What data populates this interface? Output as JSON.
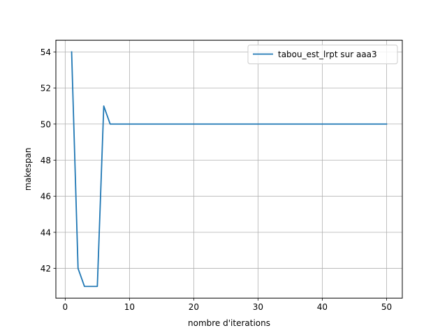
{
  "chart_data": {
    "type": "line",
    "title": "",
    "xlabel": "nombre d'iterations",
    "ylabel": "makespan",
    "xlim": [
      -1.45,
      52.45
    ],
    "ylim": [
      40.35,
      54.65
    ],
    "xticks": [
      0,
      10,
      20,
      30,
      40,
      50
    ],
    "yticks": [
      42,
      44,
      46,
      48,
      50,
      52,
      54
    ],
    "grid": true,
    "legend_position": "top-right",
    "series": [
      {
        "name": "tabou_est_lrpt sur aaa3",
        "color": "#1f77b4",
        "x": [
          1,
          2,
          3,
          4,
          5,
          6,
          7,
          8,
          9,
          10,
          11,
          12,
          13,
          14,
          15,
          16,
          17,
          18,
          19,
          20,
          21,
          22,
          23,
          24,
          25,
          26,
          27,
          28,
          29,
          30,
          31,
          32,
          33,
          34,
          35,
          36,
          37,
          38,
          39,
          40,
          41,
          42,
          43,
          44,
          45,
          46,
          47,
          48,
          49,
          50
        ],
        "y": [
          54,
          42,
          41,
          41,
          41,
          51,
          50,
          50,
          50,
          50,
          50,
          50,
          50,
          50,
          50,
          50,
          50,
          50,
          50,
          50,
          50,
          50,
          50,
          50,
          50,
          50,
          50,
          50,
          50,
          50,
          50,
          50,
          50,
          50,
          50,
          50,
          50,
          50,
          50,
          50,
          50,
          50,
          50,
          50,
          50,
          50,
          50,
          50,
          50,
          50
        ]
      }
    ]
  }
}
